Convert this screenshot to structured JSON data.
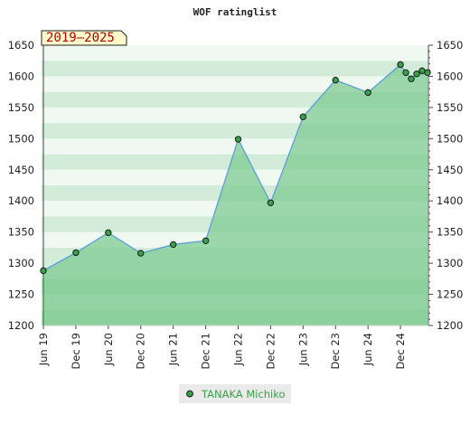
{
  "chart_data": {
    "type": "area",
    "title": "WOF ratinglist",
    "period_badge": "2019–2025",
    "ylim": [
      1200,
      1650
    ],
    "y_ticks": [
      1200,
      1250,
      1300,
      1350,
      1400,
      1450,
      1500,
      1550,
      1600,
      1650
    ],
    "y_tick_labels": [
      "1200",
      "1250",
      "1300",
      "1350",
      "1400",
      "1450",
      "1500",
      "1550",
      "1600",
      "1650"
    ],
    "x_ticks": [
      "2019-06",
      "2019-12",
      "2020-06",
      "2020-12",
      "2021-06",
      "2021-12",
      "2022-06",
      "2022-12",
      "2023-06",
      "2023-12",
      "2024-06",
      "2024-12"
    ],
    "x_tick_labels": [
      "Jun 19",
      "Dec 19",
      "Jun 20",
      "Dec 20",
      "Jun 21",
      "Dec 21",
      "Jun 22",
      "Dec 22",
      "Jun 23",
      "Dec 23",
      "Jun 24",
      "Dec 24"
    ],
    "xlim": [
      "2019-06",
      "2025-05"
    ],
    "legend_position": "bottom",
    "grid": true,
    "series": [
      {
        "name": "TANAKA Michiko",
        "color": "#3aa04a",
        "points": [
          {
            "x": "2019-06",
            "y": 1288
          },
          {
            "x": "2019-12",
            "y": 1317
          },
          {
            "x": "2020-06",
            "y": 1349
          },
          {
            "x": "2020-12",
            "y": 1316
          },
          {
            "x": "2021-06",
            "y": 1330
          },
          {
            "x": "2021-12",
            "y": 1336
          },
          {
            "x": "2022-06",
            "y": 1499
          },
          {
            "x": "2022-12",
            "y": 1397
          },
          {
            "x": "2023-06",
            "y": 1535
          },
          {
            "x": "2023-12",
            "y": 1594
          },
          {
            "x": "2024-06",
            "y": 1574
          },
          {
            "x": "2024-12",
            "y": 1619
          },
          {
            "x": "2025-01",
            "y": 1606
          },
          {
            "x": "2025-02",
            "y": 1596
          },
          {
            "x": "2025-03",
            "y": 1604
          },
          {
            "x": "2025-04",
            "y": 1609
          },
          {
            "x": "2025-05",
            "y": 1606
          }
        ]
      }
    ]
  },
  "colors": {
    "band_light": "#f0f8f2",
    "band_mid": "#d3ecda",
    "band_dark": "#b8e0c2",
    "area_fill": "#7ccb8f",
    "line": "#5b9fd8",
    "marker_fill": "#3aa04a",
    "badge_fill": "#fffacc",
    "badge_text": "#b00000"
  }
}
